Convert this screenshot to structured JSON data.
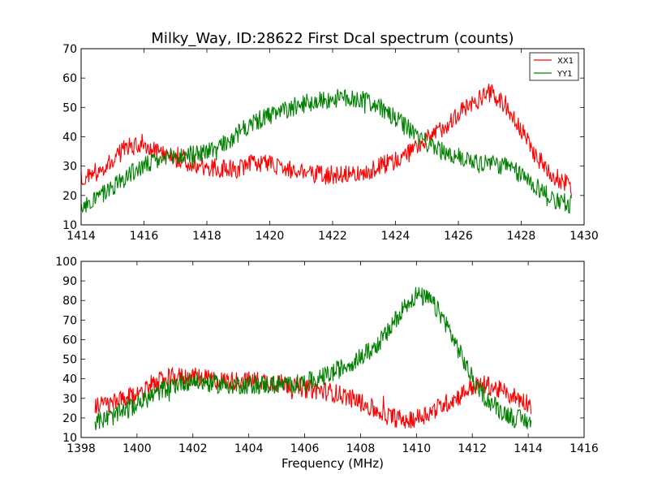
{
  "figure": {
    "title": "Milky_Way, ID:28622 First Dcal spectrum (counts)",
    "xlabel": "Frequency (MHz)"
  },
  "colors": {
    "XX1": "#ff0000",
    "YY1": "#008000"
  },
  "chart_data": [
    {
      "type": "line",
      "title": "Milky_Way, ID:28622 First Dcal spectrum (counts)",
      "xlabel": "",
      "ylabel": "",
      "xlim": [
        1414,
        1430
      ],
      "ylim": [
        10,
        70
      ],
      "xticks": [
        1414,
        1416,
        1418,
        1420,
        1422,
        1424,
        1426,
        1428,
        1430
      ],
      "yticks": [
        10,
        20,
        30,
        40,
        50,
        60,
        70
      ],
      "grid": false,
      "legend": {
        "position": "top-right",
        "entries": [
          "XX1",
          "YY1"
        ]
      },
      "x": [
        1414.0,
        1414.5,
        1415.0,
        1415.5,
        1416.0,
        1416.5,
        1417.0,
        1417.5,
        1418.0,
        1418.5,
        1419.0,
        1419.5,
        1420.0,
        1420.5,
        1421.0,
        1421.5,
        1422.0,
        1422.5,
        1423.0,
        1423.5,
        1424.0,
        1424.5,
        1425.0,
        1425.5,
        1426.0,
        1426.5,
        1427.0,
        1427.5,
        1428.0,
        1428.5,
        1429.0,
        1429.6
      ],
      "series": [
        {
          "name": "XX1",
          "color": "#ff0000",
          "values": [
            26,
            28,
            32,
            37,
            37,
            35,
            33,
            31,
            30,
            29,
            29,
            31,
            31,
            29,
            28,
            27,
            27,
            28,
            28,
            30,
            32,
            35,
            39,
            43,
            48,
            52,
            55,
            51,
            42,
            33,
            27,
            23
          ]
        },
        {
          "name": "YY1",
          "color": "#008000",
          "values": [
            17,
            19,
            23,
            27,
            30,
            32,
            33,
            34,
            35,
            37,
            41,
            45,
            47,
            49,
            51,
            52,
            53,
            53,
            53,
            50,
            46,
            42,
            38,
            35,
            33,
            32,
            31,
            30,
            27,
            23,
            19,
            17
          ]
        }
      ]
    },
    {
      "type": "line",
      "title": "",
      "xlabel": "Frequency (MHz)",
      "ylabel": "",
      "xlim": [
        1398,
        1416
      ],
      "ylim": [
        10,
        100
      ],
      "xticks": [
        1398,
        1400,
        1402,
        1404,
        1406,
        1408,
        1410,
        1412,
        1414,
        1416
      ],
      "yticks": [
        10,
        20,
        30,
        40,
        50,
        60,
        70,
        80,
        90,
        100
      ],
      "grid": false,
      "x": [
        1398.5,
        1399.0,
        1399.5,
        1400.0,
        1400.5,
        1401.0,
        1401.5,
        1402.0,
        1402.5,
        1403.0,
        1403.5,
        1404.0,
        1404.5,
        1405.0,
        1405.5,
        1406.0,
        1406.5,
        1407.0,
        1407.5,
        1408.0,
        1408.5,
        1409.0,
        1409.5,
        1410.0,
        1410.5,
        1411.0,
        1411.5,
        1412.0,
        1412.5,
        1413.0,
        1413.5,
        1414.1
      ],
      "series": [
        {
          "name": "XX1",
          "color": "#ff0000",
          "values": [
            26,
            27,
            29,
            32,
            37,
            40,
            41,
            41,
            40,
            39,
            39,
            39,
            39,
            38,
            37,
            35,
            34,
            33,
            31,
            28,
            24,
            21,
            19,
            20,
            23,
            27,
            31,
            36,
            37,
            34,
            31,
            27
          ]
        },
        {
          "name": "YY1",
          "color": "#008000",
          "values": [
            18,
            20,
            23,
            27,
            31,
            35,
            38,
            39,
            38,
            37,
            37,
            37,
            37,
            37,
            37,
            38,
            40,
            43,
            47,
            51,
            56,
            64,
            76,
            83,
            80,
            70,
            55,
            40,
            30,
            24,
            20,
            18
          ]
        }
      ]
    }
  ]
}
